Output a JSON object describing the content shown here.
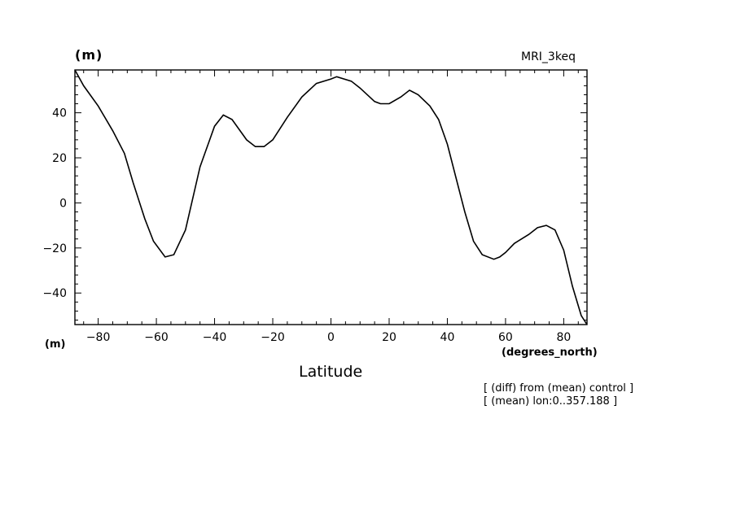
{
  "header": {
    "units_top": "(m)",
    "model": "MRI_3keq"
  },
  "axes": {
    "units_left": "(m)",
    "x_units": "(degrees_north)",
    "x_label": "Latitude"
  },
  "notes": [
    "[ (diff) from (mean) control ]",
    "[ (mean) lon:0..357.188 ]"
  ],
  "chart_data": {
    "type": "line",
    "title": "",
    "xlabel": "Latitude",
    "ylabel": "(m)",
    "xlim": [
      -88,
      88
    ],
    "ylim": [
      -54,
      59
    ],
    "xticks": [
      -80,
      -60,
      -40,
      -20,
      0,
      20,
      40,
      60,
      80
    ],
    "yticks": [
      -40,
      -20,
      0,
      20,
      40
    ],
    "grid": false,
    "series": [
      {
        "x": [
          -88,
          -85,
          -80,
          -75,
          -71,
          -68,
          -64,
          -61,
          -57,
          -54,
          -50,
          -45,
          -40,
          -37,
          -34,
          -29,
          -26,
          -23,
          -20,
          -15,
          -10,
          -5,
          0,
          2,
          7,
          10,
          15,
          17,
          20,
          24,
          27,
          30,
          34,
          37,
          40,
          43,
          46,
          49,
          52,
          56,
          58,
          60,
          63,
          68,
          71,
          74,
          77,
          80,
          83,
          86,
          88
        ],
        "y": [
          59,
          52,
          43,
          32,
          22,
          9,
          -7,
          -17,
          -24,
          -23,
          -12,
          16,
          34,
          39,
          37,
          28,
          25,
          25,
          28,
          38,
          47,
          53,
          55,
          56,
          54,
          51,
          45,
          44,
          44,
          47,
          50,
          48,
          43,
          37,
          26,
          11,
          -4,
          -17,
          -23,
          -25,
          -24,
          -22,
          -18,
          -14,
          -11,
          -10,
          -12,
          -21,
          -37,
          -50,
          -54
        ]
      }
    ]
  }
}
